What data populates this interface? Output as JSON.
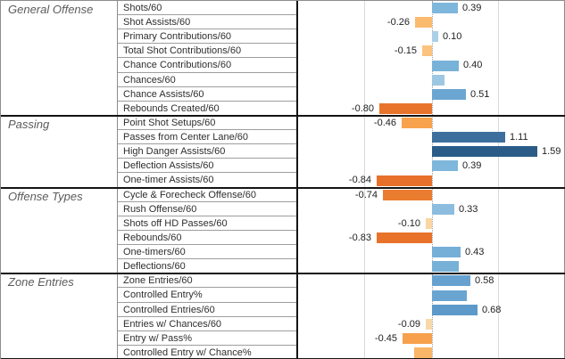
{
  "chart_data": {
    "type": "bar",
    "orientation": "horizontal",
    "title": "",
    "xlabel": "",
    "ylabel": "",
    "axis": {
      "xmin": -2.02,
      "xmax": 2.02,
      "gridlines": [
        -1,
        1
      ],
      "zero_line": 0,
      "zero_line_style": "dotted"
    },
    "legend": null,
    "palette": {
      "positive": "#5d99c9",
      "negative": "#e8742b",
      "note": "diverging orange-blue, intensity scales with magnitude"
    },
    "groups": [
      {
        "name": "General Offense",
        "rows": [
          {
            "label": "Shots/60",
            "value": 0.39,
            "value_label": "0.39",
            "color": "#7fb6db"
          },
          {
            "label": "Shot Assists/60",
            "value": -0.26,
            "value_label": "-0.26",
            "color": "#fabb6e"
          },
          {
            "label": "Primary Contributions/60",
            "value": 0.1,
            "value_label": "0.10",
            "color": "#abcfe7"
          },
          {
            "label": "Total Shot Contributions/60",
            "value": -0.15,
            "value_label": "-0.15",
            "color": "#fbc37d"
          },
          {
            "label": "Chance Contributions/60",
            "value": 0.4,
            "value_label": "0.40",
            "color": "#79b2d9"
          },
          {
            "label": "Chances/60",
            "value": 0.19,
            "value_label": "",
            "color": "#9dc7e3"
          },
          {
            "label": "Chance Assists/60",
            "value": 0.51,
            "value_label": "0.51",
            "color": "#6ba6d3"
          },
          {
            "label": "Rebounds Created/60",
            "value": -0.8,
            "value_label": "-0.80",
            "color": "#e8742b"
          }
        ]
      },
      {
        "name": "Passing",
        "rows": [
          {
            "label": "Point Shot Setups/60",
            "value": -0.46,
            "value_label": "-0.46",
            "color": "#f8a24d"
          },
          {
            "label": "Passes from Center Lane/60",
            "value": 1.11,
            "value_label": "1.11",
            "color": "#3d6f9e"
          },
          {
            "label": "High Danger Assists/60",
            "value": 1.59,
            "value_label": "1.59",
            "color": "#2b5c88"
          },
          {
            "label": "Deflection Assists/60",
            "value": 0.39,
            "value_label": "0.39",
            "color": "#7fb6db"
          },
          {
            "label": "One-timer Assists/60",
            "value": -0.84,
            "value_label": "-0.84",
            "color": "#e7702a"
          }
        ]
      },
      {
        "name": "Offense Types",
        "rows": [
          {
            "label": "Cycle & Forecheck Offense/60",
            "value": -0.74,
            "value_label": "-0.74",
            "color": "#ea7c30"
          },
          {
            "label": "Rush Offense/60",
            "value": 0.33,
            "value_label": "0.33",
            "color": "#8cbdde"
          },
          {
            "label": "Shots off HD Passes/60",
            "value": -0.1,
            "value_label": "-0.10",
            "color": "#f9d6a2"
          },
          {
            "label": "Rebounds/60",
            "value": -0.83,
            "value_label": "-0.83",
            "color": "#e8722a"
          },
          {
            "label": "One-timers/60",
            "value": 0.43,
            "value_label": "0.43",
            "color": "#75afd7"
          },
          {
            "label": "Deflections/60",
            "value": 0.41,
            "value_label": "",
            "color": "#78b1d8"
          }
        ]
      },
      {
        "name": "Zone Entries",
        "rows": [
          {
            "label": "Zone Entries/60",
            "value": 0.58,
            "value_label": "0.58",
            "color": "#67a1cf"
          },
          {
            "label": "Controlled Entry%",
            "value": 0.53,
            "value_label": "",
            "color": "#6aa5d2"
          },
          {
            "label": "Controlled Entries/60",
            "value": 0.68,
            "value_label": "0.68",
            "color": "#5d99c9"
          },
          {
            "label": "Entries w/ Chances/60",
            "value": -0.09,
            "value_label": "-0.09",
            "color": "#f8d9a9"
          },
          {
            "label": "Entry w/ Pass%",
            "value": -0.45,
            "value_label": "-0.45",
            "color": "#f7a14c"
          },
          {
            "label": "Controlled Entry w/ Chance%",
            "value": -0.27,
            "value_label": "",
            "color": "#f9b668"
          }
        ]
      }
    ]
  }
}
